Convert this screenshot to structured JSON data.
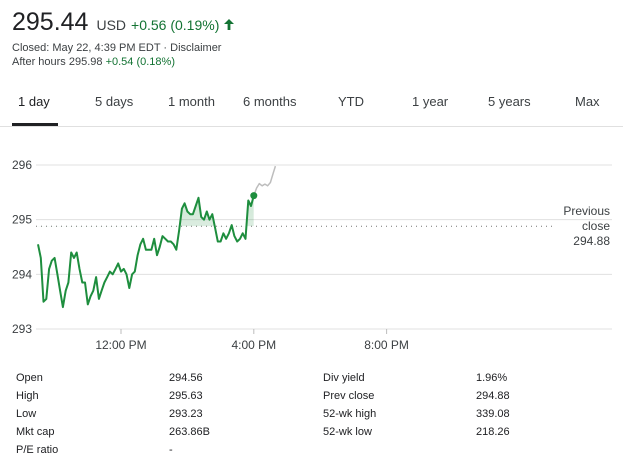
{
  "header": {
    "price": "295.44",
    "currency": "USD",
    "change": "+0.56 (0.19%)",
    "closed_text": "Closed: May 22, 4:39 PM EDT · Disclaimer",
    "after_hours_label": "After hours 295.98",
    "after_hours_change": "+0.54 (0.18%)"
  },
  "tabs": [
    {
      "label": "1 day",
      "active": true
    },
    {
      "label": "5 days",
      "active": false
    },
    {
      "label": "1 month",
      "active": false
    },
    {
      "label": "6 months",
      "active": false
    },
    {
      "label": "YTD",
      "active": false
    },
    {
      "label": "1 year",
      "active": false
    },
    {
      "label": "5 years",
      "active": false
    },
    {
      "label": "Max",
      "active": false
    }
  ],
  "chart_data": {
    "type": "area",
    "y_ticks": [
      "296",
      "295",
      "294",
      "293"
    ],
    "x_ticks": [
      "12:00 PM",
      "4:00 PM",
      "8:00 PM"
    ],
    "ylim": [
      293,
      296
    ],
    "previous_close": 294.88,
    "previous_close_label": [
      "Previous",
      "close",
      "294.88"
    ],
    "regular_session": {
      "x": [
        "9:30",
        "9:35",
        "9:40",
        "9:45",
        "9:50",
        "9:55",
        "10:00",
        "10:05",
        "10:10",
        "10:15",
        "10:20",
        "10:25",
        "10:30",
        "10:35",
        "10:40",
        "10:45",
        "10:50",
        "10:55",
        "11:00",
        "11:05",
        "11:10",
        "11:15",
        "11:20",
        "11:25",
        "11:30",
        "11:35",
        "11:40",
        "11:45",
        "11:50",
        "11:55",
        "12:00",
        "12:05",
        "12:10",
        "12:15",
        "12:20",
        "12:25",
        "12:30",
        "12:35",
        "12:40",
        "12:45",
        "12:50",
        "12:55",
        "13:00",
        "13:05",
        "13:10",
        "13:15",
        "13:20",
        "13:25",
        "13:30",
        "13:35",
        "13:40",
        "13:45",
        "13:50",
        "13:55",
        "14:00",
        "14:05",
        "14:10",
        "14:15",
        "14:20",
        "14:25",
        "14:30",
        "14:35",
        "14:40",
        "14:45",
        "14:50",
        "14:55",
        "15:00",
        "15:05",
        "15:10",
        "15:15",
        "15:20",
        "15:25",
        "15:30",
        "15:35",
        "15:40",
        "15:45",
        "15:50",
        "15:55",
        "16:00"
      ],
      "y": [
        294.55,
        294.3,
        293.5,
        293.55,
        294.1,
        294.25,
        294.3,
        294.0,
        293.7,
        293.4,
        293.7,
        293.85,
        294.4,
        294.3,
        294.4,
        294.1,
        293.85,
        293.85,
        293.45,
        293.6,
        293.7,
        293.95,
        293.55,
        293.7,
        293.85,
        293.95,
        294.05,
        294.0,
        294.1,
        294.2,
        294.05,
        294.1,
        294.0,
        293.75,
        294.0,
        294.05,
        294.35,
        294.55,
        294.65,
        294.45,
        294.45,
        294.45,
        294.65,
        294.35,
        294.5,
        294.7,
        294.65,
        294.6,
        294.6,
        294.55,
        294.45,
        294.8,
        295.2,
        295.3,
        295.15,
        295.1,
        295.1,
        295.25,
        295.4,
        295.05,
        295.0,
        295.15,
        295.0,
        295.1,
        294.85,
        294.6,
        294.6,
        294.75,
        294.65,
        294.75,
        294.9,
        294.7,
        294.6,
        294.65,
        294.75,
        294.65,
        295.35,
        295.25,
        295.44
      ]
    },
    "after_hours": {
      "x": [
        "16:00",
        "16:05",
        "16:10",
        "16:15",
        "16:20",
        "16:25",
        "16:30",
        "16:35",
        "16:39"
      ],
      "y": [
        295.44,
        295.58,
        295.66,
        295.62,
        295.65,
        295.62,
        295.68,
        295.85,
        295.98
      ]
    }
  },
  "stats": {
    "left": [
      {
        "label": "Open",
        "value": "294.56"
      },
      {
        "label": "High",
        "value": "295.63"
      },
      {
        "label": "Low",
        "value": "293.23"
      },
      {
        "label": "Mkt cap",
        "value": "263.86B"
      },
      {
        "label": "P/E ratio",
        "value": "-"
      }
    ],
    "right": [
      {
        "label": "Div yield",
        "value": "1.96%"
      },
      {
        "label": "Prev close",
        "value": "294.88"
      },
      {
        "label": "52-wk high",
        "value": "339.08"
      },
      {
        "label": "52-wk low",
        "value": "218.26"
      }
    ]
  },
  "colors": {
    "positive": "#137333",
    "line": "#1e8e3e",
    "after_hours_line": "#bdbdbd",
    "grid": "#e0e0e0"
  }
}
